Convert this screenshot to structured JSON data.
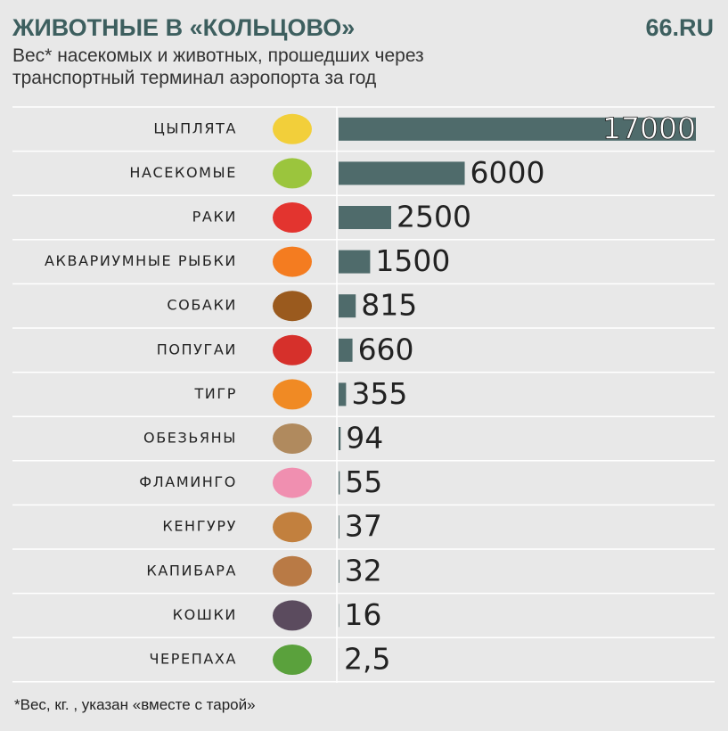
{
  "chart_data": {
    "type": "bar",
    "orientation": "horizontal",
    "title": "ЖИВОТНЫЕ В «КОЛЬЦОВО»",
    "brand": "66.RU",
    "subtitle": "Вес* насекомых и животных, прошедших через транспортный терминал аэропорта за год",
    "footnote": "*Вес, кг. , указан «вместе с тарой»",
    "categories": [
      "ЦЫПЛЯТА",
      "НАСЕКОМЫЕ",
      "РАКИ",
      "АКВАРИУМНЫЕ РЫБКИ",
      "СОБАКИ",
      "ПОПУГАИ",
      "ТИГР",
      "ОБЕЗЬЯНЫ",
      "ФЛАМИНГО",
      "КЕНГУРУ",
      "КАПИБАРА",
      "КОШКИ",
      "ЧЕРЕПАХА"
    ],
    "values": [
      17000,
      6000,
      2500,
      1500,
      815,
      660,
      355,
      94,
      55,
      37,
      32,
      16,
      2.5
    ],
    "value_labels": [
      "17000",
      "6000",
      "2500",
      "1500",
      "815",
      "660",
      "355",
      "94",
      "55",
      "37",
      "32",
      "16",
      "2,5"
    ],
    "color": "#4f6b6b"
  }
}
